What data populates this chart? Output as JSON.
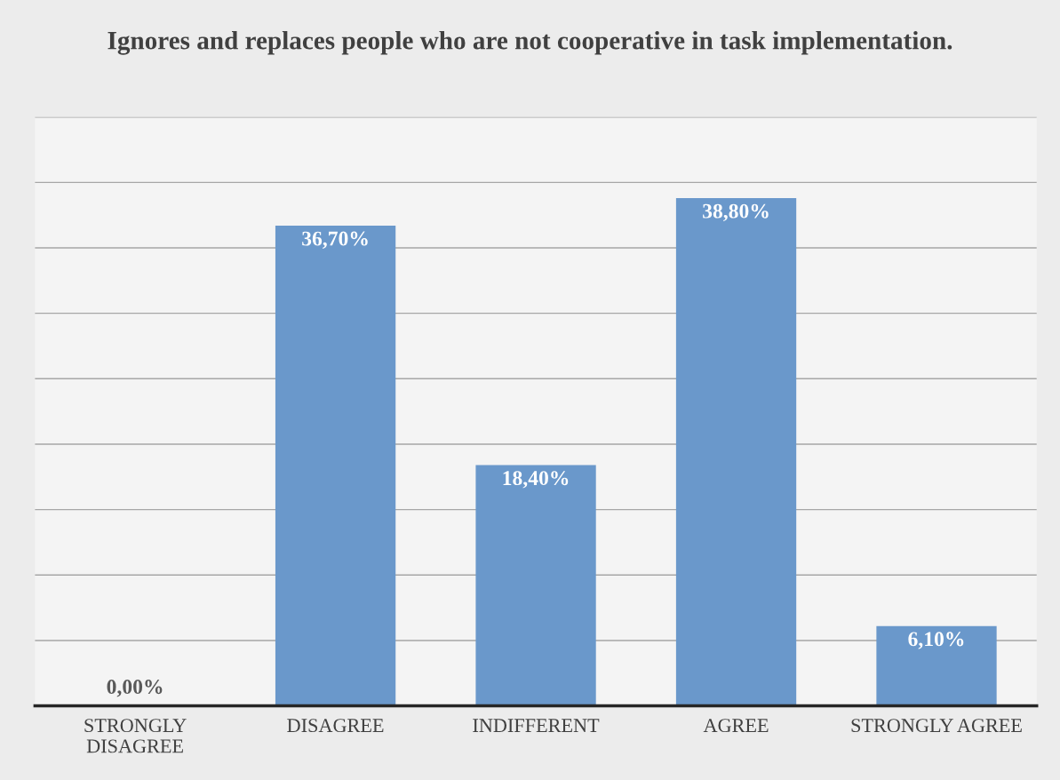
{
  "chart_data": {
    "type": "bar",
    "title": "Ignores and replaces people who are not cooperative in task implementation.",
    "categories": [
      "STRONGLY\nDISAGREE",
      "DISAGREE",
      "INDIFFERENT",
      "AGREE",
      "STRONGLY AGREE"
    ],
    "values": [
      0,
      36.7,
      18.4,
      38.8,
      6.1
    ],
    "value_labels": [
      "0,00%",
      "36,70%",
      "18,40%",
      "38,80%",
      "6,10%"
    ],
    "color": "#6a98cb",
    "ylim": [
      0,
      45
    ],
    "yticks": [
      {
        "value": 0,
        "label": null
      },
      {
        "value": 5,
        "label": null
      },
      {
        "value": 10,
        "label": null
      },
      {
        "value": 15,
        "label": null
      },
      {
        "value": 20,
        "label": null
      },
      {
        "value": 25,
        "label": null
      },
      {
        "value": 30,
        "label": null
      },
      {
        "value": 35,
        "label": null
      },
      {
        "value": 40,
        "label": null
      },
      {
        "value": 45,
        "label": null
      }
    ],
    "grid": "y",
    "tick_labels": "x",
    "legend": false
  }
}
